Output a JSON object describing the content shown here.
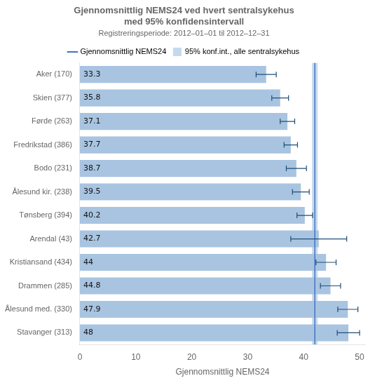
{
  "chart_data": {
    "type": "bar",
    "orientation": "horizontal",
    "title": [
      "Gjennomsnittlig NEMS24 ved hvert sentralsykehus",
      "med 95% konfidensintervall"
    ],
    "subtitle": "Registreringsperiode: 2012–01–01 til 2012–12–31",
    "xlabel": "Gjennomsnittlig NEMS24",
    "categories": [
      "Aker (170)",
      "Skien (377)",
      "Førde (263)",
      "Fredrikstad (386)",
      "Bodo (231)",
      "Ålesund kir. (238)",
      "Tønsberg (394)",
      "Arendal (43)",
      "Kristiansand (434)",
      "Drammen (285)",
      "Ålesund med. (330)",
      "Stavanger (313)"
    ],
    "values": [
      33.3,
      35.8,
      37.1,
      37.7,
      38.7,
      39.5,
      40.2,
      42.7,
      44.0,
      44.8,
      47.9,
      48.0
    ],
    "data_labels": true,
    "color": "#a8c4e0",
    "error_low": [
      1.8,
      1.5,
      1.3,
      1.2,
      1.8,
      1.5,
      1.4,
      5.0,
      1.8,
      1.8,
      1.8,
      2.0
    ],
    "error_high": [
      1.8,
      1.5,
      1.3,
      1.2,
      1.8,
      1.5,
      1.4,
      5.0,
      1.8,
      1.8,
      1.8,
      2.0
    ],
    "error_color": "#1f4e79",
    "mean_line": {
      "name": "Gjennomsnittlig NEMS24",
      "value": 42.0,
      "color": "#4472c4"
    },
    "ci_band": {
      "name": "95% konf.int., alle sentralsykehus",
      "low": 41.5,
      "high": 42.5,
      "color": "#c5d9ed"
    },
    "xlim": [
      0,
      51
    ],
    "xticks": [
      0,
      10,
      20,
      30,
      40,
      50
    ],
    "grid": false,
    "legend": "top"
  }
}
